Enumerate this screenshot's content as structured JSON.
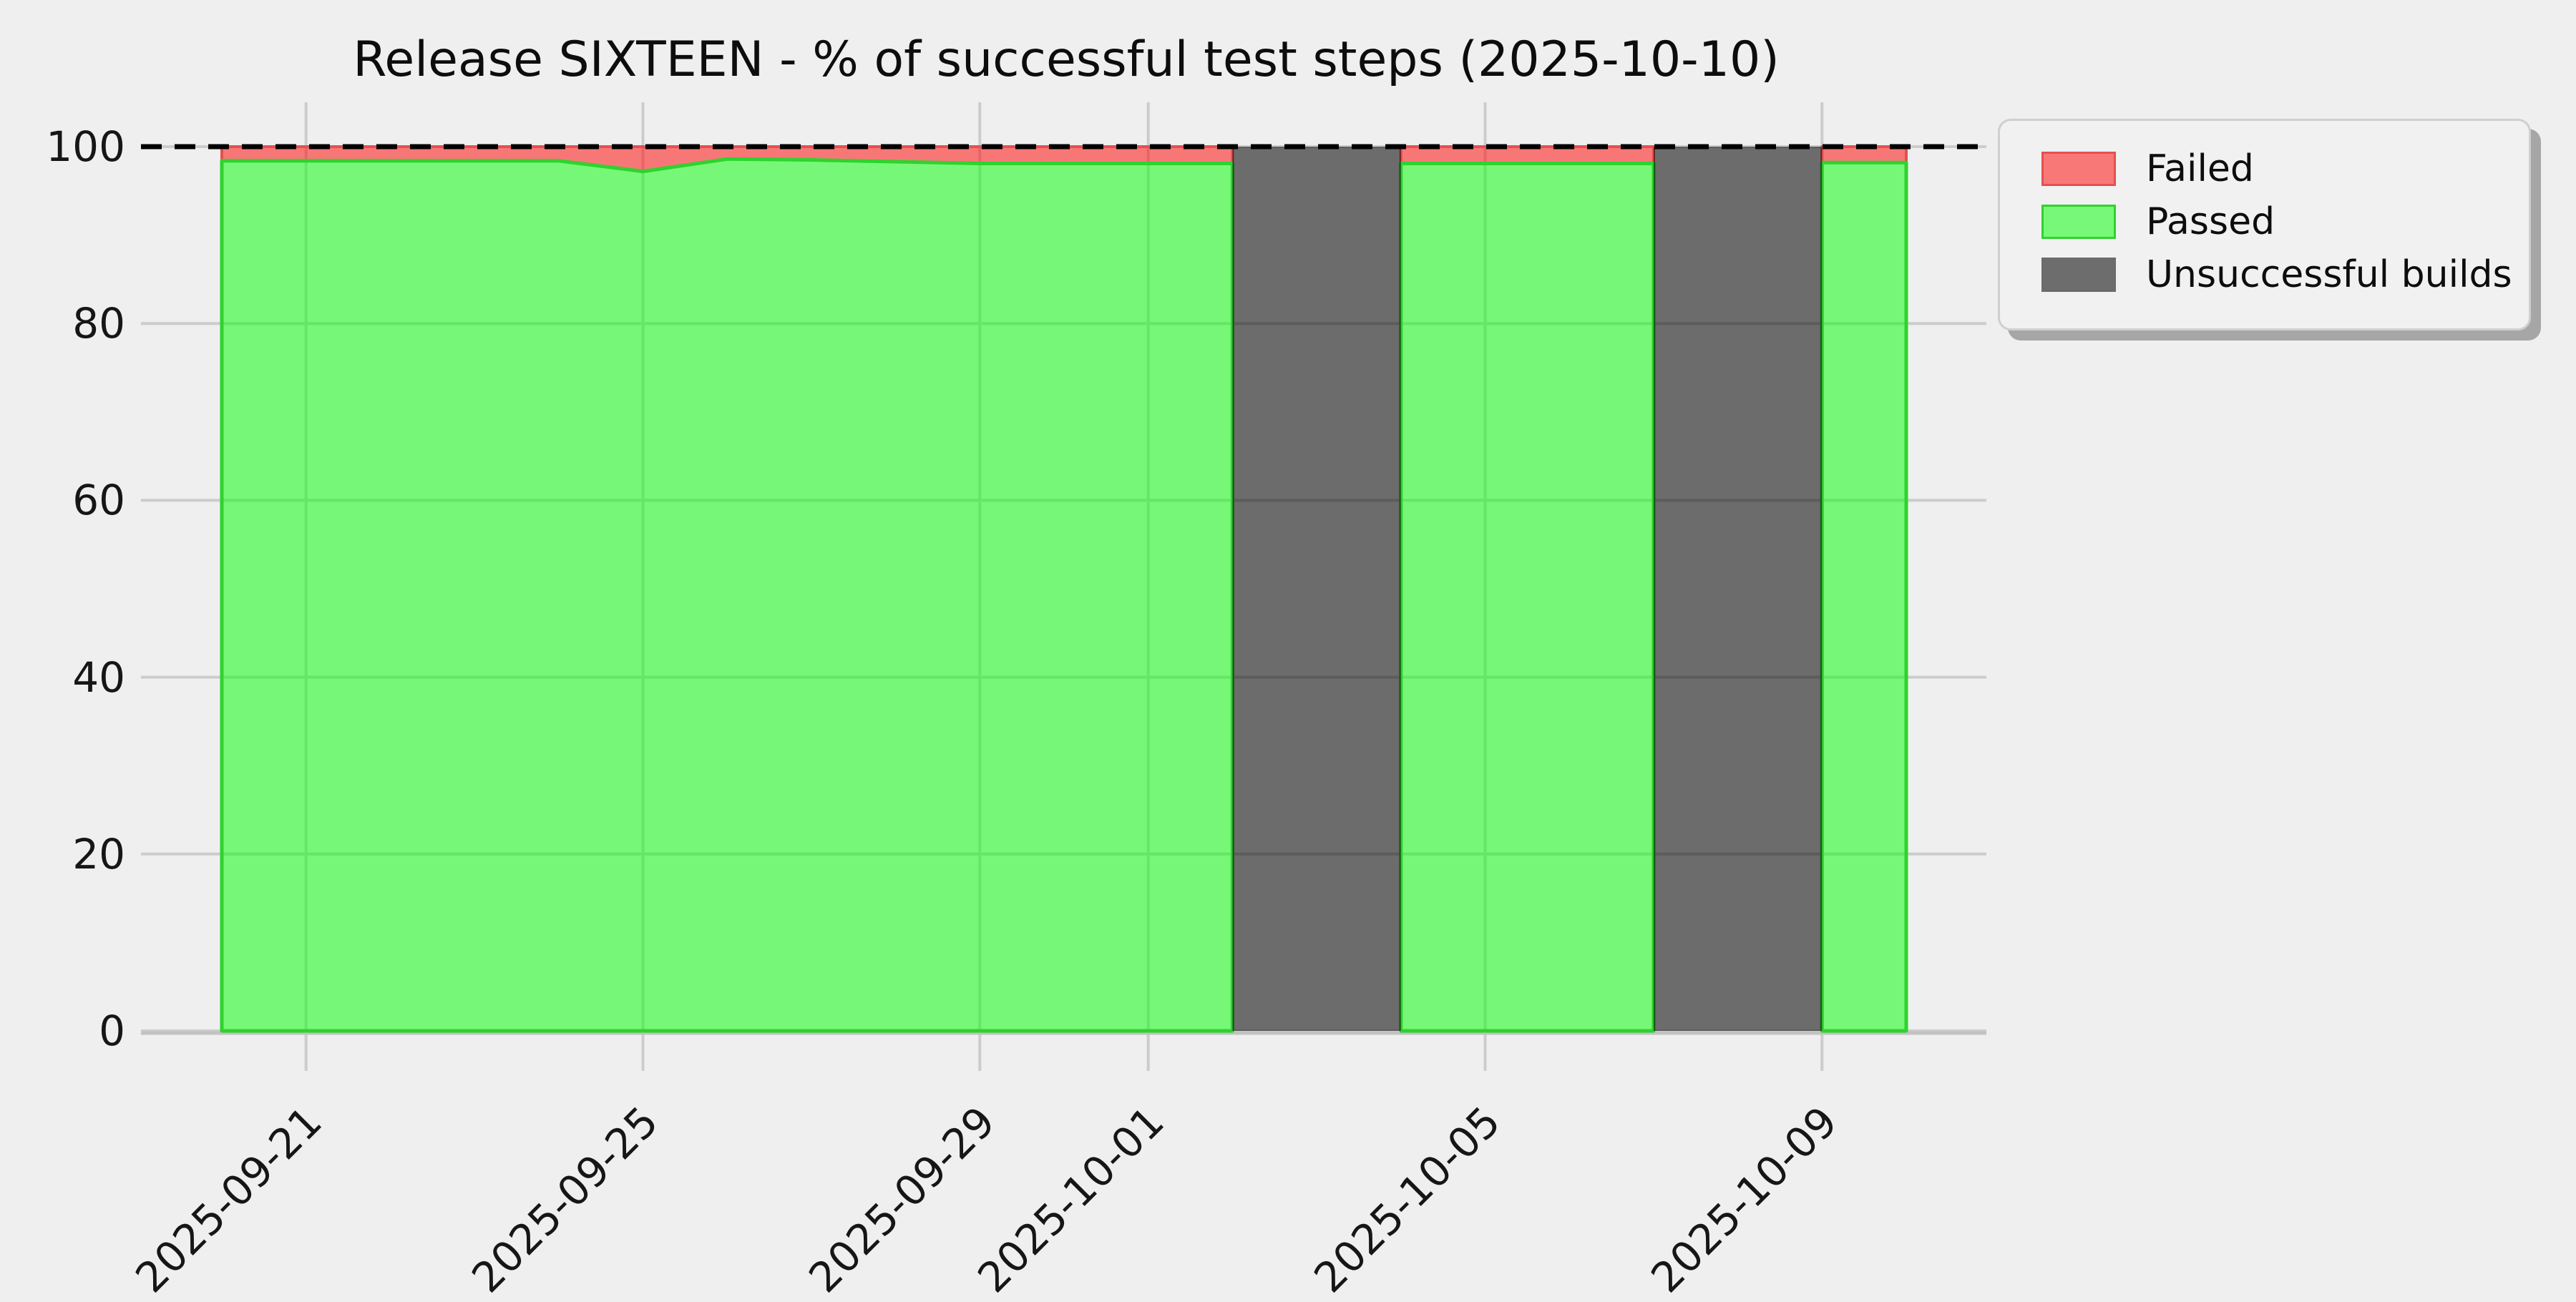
{
  "colors": {
    "background": "#efefef",
    "grid": "#cccccc",
    "axis_line": "#c2c2c2",
    "text": "#161616",
    "failed": "rgba(255,0,0,0.5)",
    "failed_edge": "#e64f4f",
    "passed": "rgba(0,255,0,0.5)",
    "passed_edge": "#2ed32e",
    "unsuccessful": "rgba(0,0,0,0.55)",
    "unsuccessful_edge": "#6b6b6b",
    "target_line": "#000000"
  },
  "chart_data": {
    "type": "area",
    "stacked": true,
    "title": "Release SIXTEEN - % of successful test steps (2025-10-10)",
    "x": [
      "2025-09-20",
      "2025-09-21",
      "2025-09-22",
      "2025-09-23",
      "2025-09-24",
      "2025-09-25",
      "2025-09-26",
      "2025-09-27",
      "2025-09-28",
      "2025-09-29",
      "2025-09-30",
      "2025-10-01",
      "2025-10-02",
      "2025-10-03",
      "2025-10-04",
      "2025-10-05",
      "2025-10-06",
      "2025-10-07",
      "2025-10-08",
      "2025-10-09",
      "2025-10-10"
    ],
    "series": [
      {
        "name": "Passed",
        "values": [
          98.4,
          98.4,
          98.4,
          98.4,
          98.4,
          97.2,
          98.6,
          98.5,
          98.3,
          98.1,
          98.1,
          98.1,
          98.1,
          null,
          98.1,
          98.1,
          98.1,
          98.1,
          null,
          98.2,
          98.2
        ]
      },
      {
        "name": "Failed",
        "values": [
          1.6,
          1.6,
          1.6,
          1.6,
          1.6,
          2.8,
          1.4,
          1.5,
          1.7,
          1.9,
          1.9,
          1.9,
          1.9,
          null,
          1.9,
          1.9,
          1.9,
          1.9,
          null,
          1.8,
          1.8
        ]
      }
    ],
    "unsuccessful_build_spans": [
      [
        "2025-10-02",
        "2025-10-04"
      ],
      [
        "2025-10-07",
        "2025-10-09"
      ]
    ],
    "target_line": {
      "value": 100,
      "style": "dashed"
    },
    "ylim": [
      0,
      100
    ],
    "yticks": [
      0,
      20,
      40,
      60,
      80,
      100
    ],
    "xticks": [
      "2025-09-21",
      "2025-09-25",
      "2025-09-29",
      "2025-10-01",
      "2025-10-05",
      "2025-10-09"
    ],
    "grid": true,
    "legend": {
      "position": "upper right",
      "entries": [
        {
          "label": "Failed",
          "swatch": "failed"
        },
        {
          "label": "Passed",
          "swatch": "passed"
        },
        {
          "label": "Unsuccessful builds",
          "swatch": "unsuccessful"
        }
      ]
    }
  }
}
